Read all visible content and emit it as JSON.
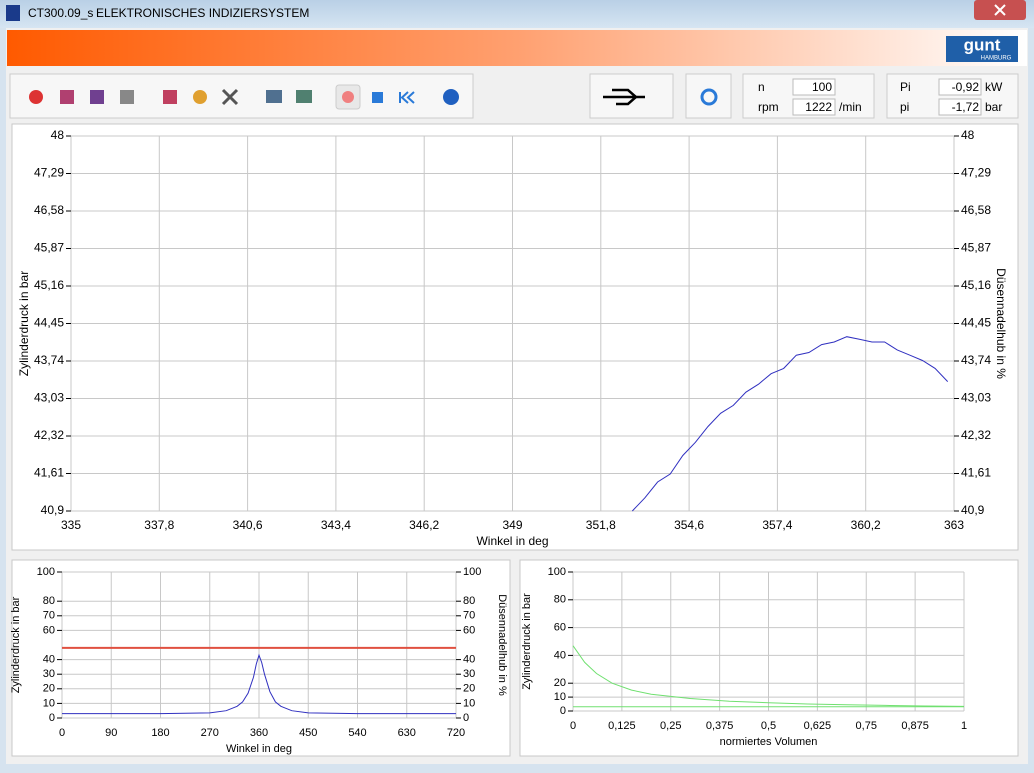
{
  "window": {
    "app": "CT300.09_s",
    "title": "ELEKTRONISCHES INDIZIERSYSTEM"
  },
  "logo": {
    "brand": "gunt",
    "city": "HAMBURG"
  },
  "readouts": [
    {
      "label": "n",
      "value": "100"
    },
    {
      "label": "rpm",
      "value": "1222",
      "unit": "/min"
    }
  ],
  "power": [
    {
      "label": "Pi",
      "value": "-0,92",
      "unit": "kW"
    },
    {
      "label": "pi",
      "value": "-1,72",
      "unit": "bar"
    }
  ],
  "chart_data": [
    {
      "type": "line",
      "xlabel": "Winkel in deg",
      "ylabel": "Zylinderdruck in bar",
      "y2label": "Düsennadelhub in %",
      "grid": true,
      "xlim": [
        335,
        363
      ],
      "xticks": [
        335,
        {
          "value": 337.8,
          "label": "337,8"
        },
        {
          "value": 340.6,
          "label": "340,6"
        },
        {
          "value": 343.4,
          "label": "343,4"
        },
        {
          "value": 346.2,
          "label": "346,2"
        },
        349,
        {
          "value": 351.8,
          "label": "351,8"
        },
        {
          "value": 354.6,
          "label": "354,6"
        },
        {
          "value": 357.4,
          "label": "357,4"
        },
        {
          "value": 360.2,
          "label": "360,2"
        },
        363
      ],
      "ylim": [
        40.9,
        48
      ],
      "yticks": [
        {
          "value": 40.9,
          "label": "40,9"
        },
        {
          "value": 41.61,
          "label": "41,61"
        },
        {
          "value": 42.32,
          "label": "42,32"
        },
        {
          "value": 43.03,
          "label": "43,03"
        },
        {
          "value": 43.74,
          "label": "43,74"
        },
        {
          "value": 44.45,
          "label": "44,45"
        },
        {
          "value": 45.16,
          "label": "45,16"
        },
        {
          "value": 45.87,
          "label": "45,87"
        },
        {
          "value": 46.58,
          "label": "46,58"
        },
        {
          "value": 47.29,
          "label": "47,29"
        },
        48
      ],
      "y2lim": [
        40.9,
        48
      ],
      "y2ticks": [
        {
          "value": 40.9,
          "label": "40,9"
        },
        {
          "value": 41.61,
          "label": "41,61"
        },
        {
          "value": 42.32,
          "label": "42,32"
        },
        {
          "value": 43.03,
          "label": "43,03"
        },
        {
          "value": 43.74,
          "label": "43,74"
        },
        {
          "value": 44.45,
          "label": "44,45"
        },
        {
          "value": 45.16,
          "label": "45,16"
        },
        {
          "value": 45.87,
          "label": "45,87"
        },
        {
          "value": 46.58,
          "label": "46,58"
        },
        {
          "value": 47.29,
          "label": "47,29"
        },
        48
      ],
      "series": [
        {
          "color": "#3030c0",
          "x": [
            352.8,
            353.2,
            353.6,
            354.0,
            354.4,
            354.8,
            355.2,
            355.6,
            356.0,
            356.4,
            356.8,
            357.2,
            357.6,
            358.0,
            358.4,
            358.8,
            359.2,
            359.6,
            360.0,
            360.4,
            360.8,
            361.2,
            361.6,
            362.0,
            362.4,
            362.8
          ],
          "values": [
            40.9,
            41.15,
            41.45,
            41.6,
            41.95,
            42.2,
            42.5,
            42.75,
            42.9,
            43.15,
            43.3,
            43.5,
            43.6,
            43.85,
            43.9,
            44.05,
            44.1,
            44.2,
            44.15,
            44.1,
            44.1,
            43.95,
            43.85,
            43.75,
            43.6,
            43.35
          ]
        }
      ]
    },
    {
      "type": "line",
      "xlabel": "Winkel in deg",
      "ylabel": "Zylinderdruck in bar",
      "y2label": "Düsennadelhub in %",
      "grid": true,
      "xlim": [
        0,
        720
      ],
      "xticks": [
        0,
        90,
        180,
        270,
        360,
        450,
        540,
        630,
        720
      ],
      "ylim": [
        0,
        100
      ],
      "yticks": [
        0,
        10,
        20,
        30,
        40,
        60,
        70,
        80,
        100
      ],
      "y2lim": [
        0,
        100
      ],
      "y2ticks": [
        0,
        10,
        20,
        30,
        40,
        60,
        70,
        80,
        100
      ],
      "series": [
        {
          "color": "#3030c0",
          "x": [
            0,
            90,
            180,
            270,
            300,
            320,
            330,
            340,
            350,
            355,
            360,
            365,
            370,
            380,
            390,
            400,
            420,
            450,
            540,
            630,
            720
          ],
          "values": [
            3,
            3,
            3,
            3.5,
            5,
            8,
            11,
            17,
            28,
            37,
            43,
            38,
            30,
            18,
            11,
            8,
            5,
            3.5,
            3,
            3,
            3
          ]
        },
        {
          "color": "#e05040",
          "axis": "y2",
          "x": [
            0,
            720
          ],
          "values": [
            48,
            48
          ]
        }
      ]
    },
    {
      "type": "line",
      "xlabel": "normiertes Volumen",
      "ylabel": "Zylinderdruck in bar",
      "grid": true,
      "xlim": [
        0,
        1
      ],
      "xticks": [
        0,
        {
          "value": 0.125,
          "label": "0,125"
        },
        {
          "value": 0.25,
          "label": "0,25"
        },
        {
          "value": 0.375,
          "label": "0,375"
        },
        {
          "value": 0.5,
          "label": "0,5"
        },
        {
          "value": 0.625,
          "label": "0,625"
        },
        {
          "value": 0.75,
          "label": "0,75"
        },
        {
          "value": 0.875,
          "label": "0,875"
        },
        1
      ],
      "ylim": [
        0,
        100
      ],
      "yticks": [
        0,
        10,
        20,
        40,
        60,
        80,
        100
      ],
      "series": [
        {
          "color": "#70e070",
          "x": [
            0,
            0.03,
            0.06,
            0.1,
            0.15,
            0.2,
            0.3,
            0.4,
            0.5,
            0.6,
            0.7,
            0.8,
            0.9,
            1
          ],
          "values": [
            47,
            35,
            27,
            20,
            15,
            12,
            9,
            7,
            6,
            5,
            4.5,
            4,
            3.6,
            3.3
          ]
        },
        {
          "color": "#70e070",
          "x": [
            0,
            0.25,
            0.5,
            0.75,
            1
          ],
          "values": [
            3,
            3,
            3,
            3,
            3
          ]
        }
      ]
    }
  ]
}
